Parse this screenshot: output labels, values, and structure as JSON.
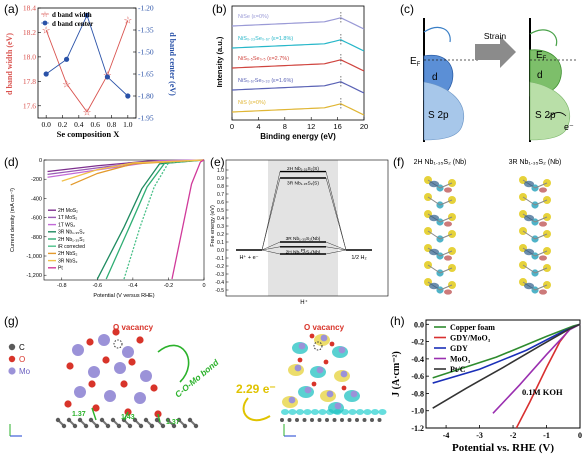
{
  "panels": {
    "a": {
      "tag": "(a)",
      "ylabel_left": "d band width (eV)",
      "ylabel_right": "d band center (eV)",
      "xlabel": "Se composition X",
      "legend": [
        "d band width",
        "d band center"
      ],
      "colors": {
        "width": "#d9534f",
        "center": "#2a52a8"
      }
    },
    "b": {
      "tag": "(b)",
      "ylabel": "Intensity (a.u.)",
      "xlabel": "Binding energy (eV)",
      "curves": [
        {
          "label": "NiSe (ε=0%)",
          "color": "#9a9ad6"
        },
        {
          "label": "NiS₀.₃₃Se₀.₆₇ (ε=1.8%)",
          "color": "#27b7c9"
        },
        {
          "label": "NiS₀.₅Se₀.₅ (ε=2.7%)",
          "color": "#d0453f"
        },
        {
          "label": "NiS₀.₆₇Se₀.₃₃ (ε=1.6%)",
          "color": "#5a62b5"
        },
        {
          "label": "NiS (ε=0%)",
          "color": "#e0b635"
        }
      ]
    },
    "c": {
      "tag": "(c)",
      "strain": "Strain",
      "ef": "E",
      "ef_sub": "F",
      "d": "d",
      "s2p": "S 2p",
      "eminus": "e⁻"
    },
    "d": {
      "tag": "(d)",
      "ylabel": "Current density (mA cm⁻²)",
      "xlabel": "Potential (V versus RHE)",
      "legend": [
        {
          "label": "2H MoS₂",
          "color": "#7d2f8e"
        },
        {
          "label": "1T MoS₂",
          "color": "#9a5ab5"
        },
        {
          "label": "1T WS₂",
          "color": "#c36ad8"
        },
        {
          "label": "3R Nb₁.₃₅S₂",
          "color": "#1f8b60"
        },
        {
          "label": "2H Nb₁.₃₅S₂",
          "color": "#2fae74"
        },
        {
          "label": "iR corrected",
          "color": "#4cc18a"
        },
        {
          "label": "2H NbS₂",
          "color": "#e39a2c"
        },
        {
          "label": "3R NbS₂",
          "color": "#f1c04a"
        },
        {
          "label": "Pt",
          "color": "#d03a9a"
        }
      ]
    },
    "e": {
      "tag": "(e)",
      "ylabel": "Free energy (eV)",
      "xlabel": "H⁺",
      "left_state": "H⁺ + e⁻",
      "right_state": "1/2 H₂",
      "levels": [
        "2H Nb₁.₃₅S₂(S)",
        "3R Nb₁.₃₅S₂(S)",
        "3R Nb₁.₃₅S₂(Nb)",
        "2H Nb₁.₃₅S₂(Nb)",
        "Pt"
      ]
    },
    "f": {
      "tag": "(f)",
      "left_title": "2H Nb₁.₃₅S₂ (Nb)",
      "right_title": "3R Nb₁.₃₅S₂ (Nb)"
    },
    "g": {
      "tag": "(g)",
      "legend": [
        {
          "label": "C",
          "color": "#5a5a5a"
        },
        {
          "label": "O",
          "color": "#d8342a"
        },
        {
          "label": "Mo",
          "color": "#9b92d8"
        }
      ],
      "vacancy": "O vacancy",
      "vacancy2": "O vacancy",
      "bond": "C-O-Mo bond",
      "electrons": "2.29 e⁻",
      "distances": [
        "1.37",
        "1.43",
        "1.37"
      ]
    },
    "h": {
      "tag": "(h)",
      "ylabel": "J (A·cm⁻²)",
      "xlabel": "Potential vs. RHE (V)",
      "annotation": "0.1M KOH",
      "legend": [
        {
          "label": "Copper foam",
          "color": "#2e8b2e"
        },
        {
          "label": "GDY/MoO₃",
          "color": "#d83030"
        },
        {
          "label": "GDY",
          "color": "#1a2fb8"
        },
        {
          "label": "MoO₃",
          "color": "#9a2fb0"
        },
        {
          "label": "Pt/C",
          "color": "#333333"
        }
      ]
    }
  },
  "chart_data": [
    {
      "type": "line",
      "panel": "a",
      "x": [
        0.0,
        0.25,
        0.5,
        0.75,
        1.0
      ],
      "series": [
        {
          "name": "d band width",
          "axis": "left",
          "values": [
            18.22,
            17.78,
            17.55,
            17.85,
            18.3
          ]
        },
        {
          "name": "d band center",
          "axis": "right",
          "values": [
            -1.65,
            -1.55,
            -1.25,
            -1.67,
            -1.8
          ]
        }
      ],
      "xlabel": "Se composition X",
      "ylabel": "d band width (eV)",
      "ylabel_right": "d band center (eV)",
      "ylim": [
        17.5,
        18.4
      ],
      "ylim_right": [
        -1.95,
        -1.2
      ],
      "xlim": [
        -0.1,
        1.1
      ],
      "xticks": [
        "0.0",
        "0.2",
        "0.4",
        "0.6",
        "0.8",
        "1.0"
      ],
      "yticks": [
        "17.6",
        "17.8",
        "18.0",
        "18.2",
        "18.4"
      ],
      "yticks_right": [
        "-1.20",
        "-1.35",
        "-1.50",
        "-1.65",
        "-1.80",
        "-1.95"
      ]
    },
    {
      "type": "line",
      "panel": "b",
      "xlabel": "Binding energy (eV)",
      "ylabel": "Intensity (a.u.)",
      "xlim": [
        0,
        20
      ],
      "xticks": [
        "0",
        "4",
        "8",
        "12",
        "16",
        "20"
      ]
    },
    {
      "type": "line",
      "panel": "d",
      "xlabel": "Potential (V versus RHE)",
      "ylabel": "Current density (mA cm⁻²)",
      "xlim": [
        -0.9,
        0.0
      ],
      "ylim": [
        -1250,
        0
      ],
      "xticks": [
        "-0.8",
        "-0.6",
        "-0.4",
        "-0.2",
        "0"
      ],
      "yticks": [
        "0",
        "-200",
        "-400",
        "-600",
        "-800",
        "-1,000",
        "-1,200"
      ]
    },
    {
      "type": "line",
      "panel": "e",
      "ylabel": "Free energy (eV)",
      "ylim": [
        -0.5,
        1.05
      ],
      "yticks": [
        "1.0",
        "0.9",
        "0.8",
        "0.7",
        "0.6",
        "0.5",
        "0.4",
        "0.3",
        "0.2",
        "0.1",
        "0.0",
        "-0.1",
        "-0.2",
        "-0.3",
        "-0.4",
        "-0.5"
      ],
      "categories": [
        "2H Nb₁.₃₅S₂(S)",
        "3R Nb₁.₃₅S₂(S)",
        "3R Nb₁.₃₅S₂(Nb)",
        "2H Nb₁.₃₅S₂(Nb)",
        "Pt"
      ],
      "values": [
        0.98,
        0.9,
        0.1,
        0.04,
        -0.05
      ]
    },
    {
      "type": "line",
      "panel": "h",
      "xlabel": "Potential vs. RHE (V)",
      "ylabel": "J (A·cm⁻²)",
      "xlim": [
        -4.6,
        0
      ],
      "ylim": [
        -1.2,
        0.05
      ],
      "xticks": [
        "-4",
        "-3",
        "-2",
        "-1",
        "0"
      ],
      "yticks": [
        "0.0",
        "-0.2",
        "-0.4",
        "-0.6",
        "-0.8",
        "-1.0",
        "-1.2"
      ],
      "series": [
        {
          "name": "Copper foam",
          "x": [
            -4.4,
            -2.5,
            -1.0,
            -0.2,
            0
          ],
          "y": [
            -0.62,
            -0.38,
            -0.14,
            -0.02,
            0
          ]
        },
        {
          "name": "GDY/MoO₃",
          "x": [
            -1.9,
            -1.5,
            -1.0,
            -0.6,
            -0.3,
            0
          ],
          "y": [
            -1.2,
            -0.9,
            -0.5,
            -0.2,
            -0.05,
            0
          ]
        },
        {
          "name": "GDY",
          "x": [
            -4.4,
            -3.0,
            -1.6,
            -0.5,
            0
          ],
          "y": [
            -0.68,
            -0.52,
            -0.3,
            -0.08,
            0
          ]
        },
        {
          "name": "MoO₃",
          "x": [
            -2.6,
            -1.8,
            -1.0,
            -0.3,
            0
          ],
          "y": [
            -1.03,
            -0.7,
            -0.35,
            -0.06,
            0
          ]
        },
        {
          "name": "Pt/C",
          "x": [
            -4.4,
            -3.4,
            -2.3,
            -1.2,
            -0.3,
            0
          ],
          "y": [
            -0.97,
            -0.74,
            -0.5,
            -0.25,
            -0.05,
            0
          ]
        }
      ]
    }
  ]
}
